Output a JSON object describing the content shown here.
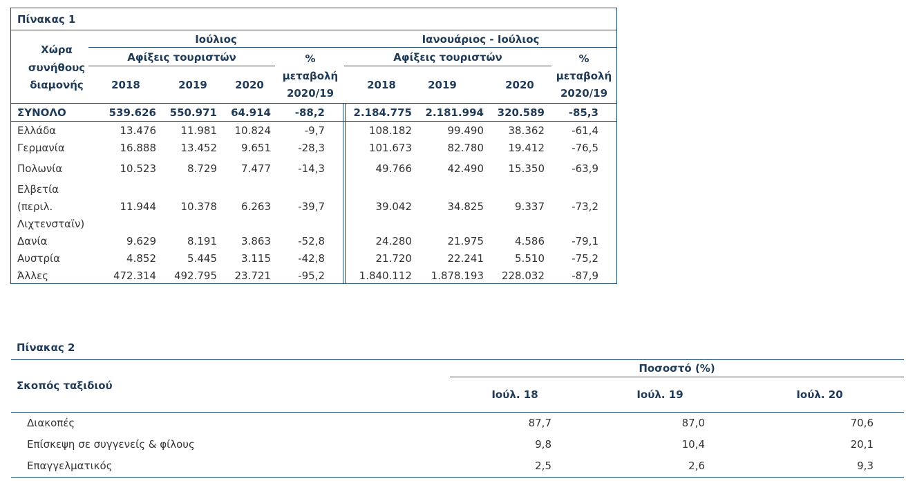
{
  "table1": {
    "title": "Πίνακας 1",
    "row_header_lines": [
      "Χώρα",
      "συνήθους",
      "διαμονής"
    ],
    "group_july": "Ιούλιος",
    "group_jan_july": "Ιανουάριος - Ιούλιος",
    "arrivals_label": "Αφίξεις τουριστών",
    "change_label_lines": [
      "%",
      "μεταβολή",
      "2020/19"
    ],
    "years": [
      "2018",
      "2019",
      "2020"
    ],
    "total": {
      "label": "ΣΥΝΟΛΟ",
      "values": [
        "539.626",
        "550.971",
        "64.914",
        "-88,2",
        "2.184.775",
        "2.181.994",
        "320.589",
        "-85,3"
      ]
    },
    "rows": [
      {
        "label_lines": [
          "Ελλάδα"
        ],
        "values": [
          "13.476",
          "11.981",
          "10.824",
          "-9,7",
          "108.182",
          "99.490",
          "38.362",
          "-61,4"
        ]
      },
      {
        "label_lines": [
          "Γερμανία"
        ],
        "values": [
          "16.888",
          "13.452",
          "9.651",
          "-28,3",
          "101.673",
          "82.780",
          "19.412",
          "-76,5"
        ]
      },
      {
        "label_lines": [
          "Πολωνία"
        ],
        "values": [
          "10.523",
          "8.729",
          "7.477",
          "-14,3",
          "49.766",
          "42.490",
          "15.350",
          "-63,9"
        ]
      },
      {
        "label_lines": [
          "Ελβετία",
          "(περιλ.",
          "Λιχτενσταϊν)"
        ],
        "values": [
          "11.944",
          "10.378",
          "6.263",
          "-39,7",
          "39.042",
          "34.825",
          "9.337",
          "-73,2"
        ]
      },
      {
        "label_lines": [
          "Δανία"
        ],
        "values": [
          "9.629",
          "8.191",
          "3.863",
          "-52,8",
          "24.280",
          "21.975",
          "4.586",
          "-79,1"
        ]
      },
      {
        "label_lines": [
          "Αυστρία"
        ],
        "values": [
          "4.852",
          "5.445",
          "3.115",
          "-42,8",
          "21.720",
          "22.241",
          "5.510",
          "-75,2"
        ]
      },
      {
        "label_lines": [
          "Άλλες"
        ],
        "values": [
          "472.314",
          "492.795",
          "23.721",
          "-95,2",
          "1.840.112",
          "1.878.193",
          "228.032",
          "-87,9"
        ]
      }
    ]
  },
  "table2": {
    "title": "Πίνακας 2",
    "row_header": "Σκοπός ταξιδιού",
    "group_header": "Ποσοστό (%)",
    "columns": [
      "Ιούλ. 18",
      "Ιούλ. 19",
      "Ιούλ. 20"
    ],
    "rows": [
      {
        "label": "Διακοπές",
        "values": [
          "87,7",
          "87,0",
          "70,6"
        ]
      },
      {
        "label": "Επίσκεψη σε συγγενείς & φίλους",
        "values": [
          "9,8",
          "10,4",
          "20,1"
        ]
      },
      {
        "label": "Επαγγελματικός",
        "values": [
          "2,5",
          "2,6",
          "9,3"
        ]
      }
    ]
  }
}
